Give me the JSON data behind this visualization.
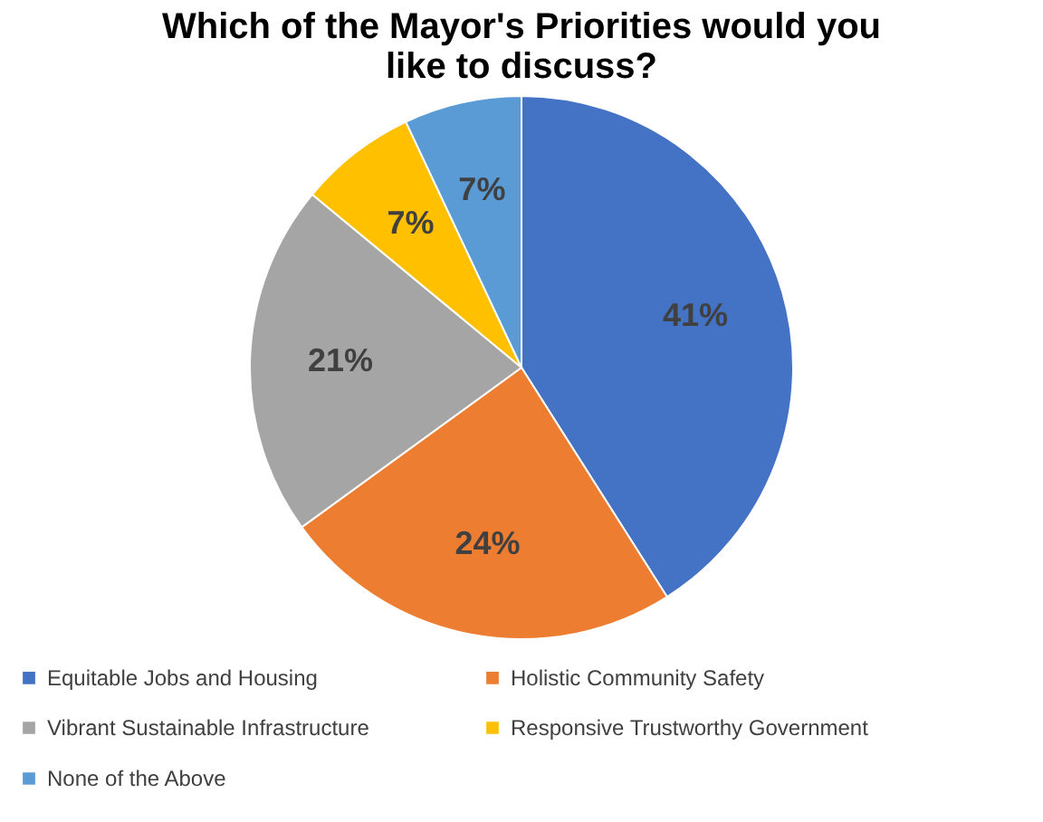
{
  "chart_data": {
    "type": "pie",
    "title": "Which of the Mayor's Priorities would you like to discuss?",
    "categories": [
      "Equitable Jobs and Housing",
      "Holistic Community Safety",
      "Vibrant Sustainable Infrastructure",
      "Responsive Trustworthy Government",
      "None of the Above"
    ],
    "values": [
      41,
      24,
      21,
      7,
      7
    ],
    "value_labels": [
      "41%",
      "24%",
      "21%",
      "7%",
      "7%"
    ],
    "colors": [
      "#4472c4",
      "#ed7d31",
      "#a5a5a5",
      "#ffc000",
      "#5b9bd5"
    ],
    "legend": "bottom"
  }
}
